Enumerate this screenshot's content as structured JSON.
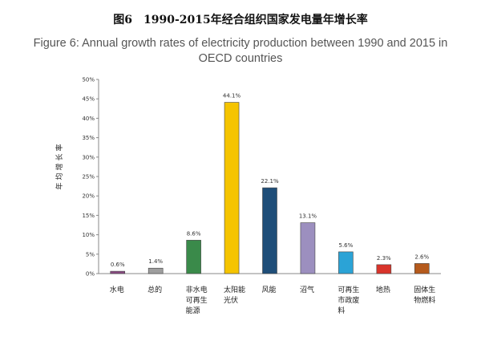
{
  "title_cn": "图6　1990-2015年经合组织国家发电量年增长率",
  "title_en": "Figure 6: Annual growth rates of electricity production between 1990 and 2015 in OECD countries",
  "chart_data": {
    "type": "bar",
    "ylabel": "年均增长率",
    "ylim": [
      0,
      50
    ],
    "yticks": [
      "0%",
      "5%",
      "10%",
      "15%",
      "20%",
      "25%",
      "30%",
      "35%",
      "40%",
      "45%",
      "50%"
    ],
    "categories": [
      "水电",
      "总的",
      "非水电可再生能源",
      "太阳能光伏",
      "风能",
      "沼气",
      "可再生市政废料",
      "地热",
      "固体生物燃料"
    ],
    "category_lines": [
      [
        "水电"
      ],
      [
        "总的"
      ],
      [
        "非水电",
        "可再生",
        "能源"
      ],
      [
        "太阳能",
        "光伏"
      ],
      [
        "风能"
      ],
      [
        "沼气"
      ],
      [
        "可再生",
        "市政废",
        "料"
      ],
      [
        "地热"
      ],
      [
        "固体生",
        "物燃料"
      ]
    ],
    "values": [
      0.6,
      1.4,
      8.6,
      44.1,
      22.1,
      13.1,
      5.6,
      2.3,
      2.6
    ],
    "value_labels": [
      "0.6%",
      "1.4%",
      "8.6%",
      "44.1%",
      "22.1%",
      "13.1%",
      "5.6%",
      "2.3%",
      "2.6%"
    ],
    "colors": [
      "#8a4a82",
      "#9e9e9e",
      "#3a8a4a",
      "#f5c400",
      "#1f4e79",
      "#9c8fbf",
      "#2ba3d6",
      "#d9342b",
      "#b55a1c"
    ],
    "grid": false,
    "legend": "none"
  }
}
